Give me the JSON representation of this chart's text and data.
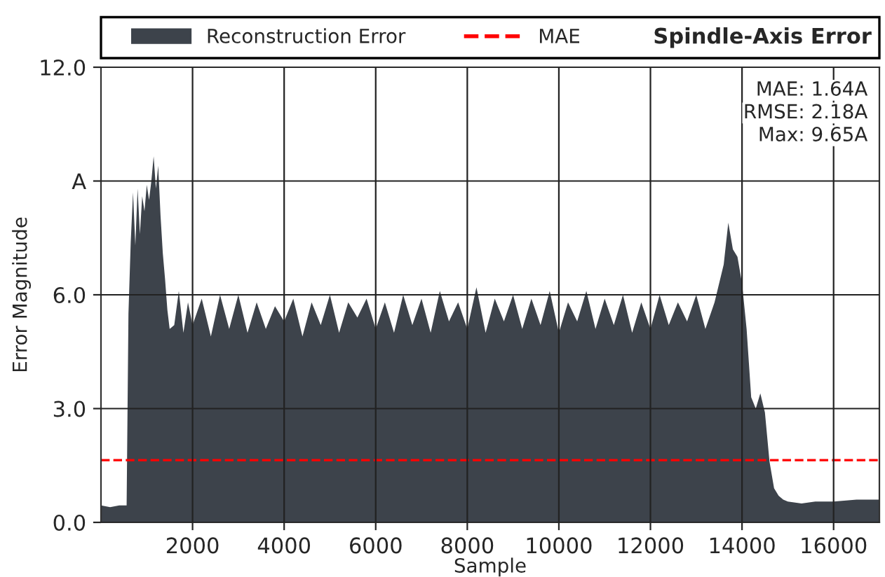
{
  "chart_data": {
    "type": "area",
    "title": "Spindle-Axis Error",
    "xlabel": "Sample",
    "ylabel": "Error Magnitude",
    "x": [
      0,
      200,
      400,
      560,
      600,
      650,
      700,
      750,
      800,
      850,
      900,
      950,
      1000,
      1050,
      1100,
      1150,
      1200,
      1250,
      1300,
      1350,
      1400,
      1450,
      1500,
      1600,
      1700,
      1800,
      1900,
      2000,
      2200,
      2400,
      2600,
      2800,
      3000,
      3200,
      3400,
      3600,
      3800,
      4000,
      4200,
      4400,
      4600,
      4800,
      5000,
      5200,
      5400,
      5600,
      5800,
      6000,
      6200,
      6400,
      6600,
      6800,
      7000,
      7200,
      7400,
      7600,
      7800,
      8000,
      8200,
      8400,
      8600,
      8800,
      9000,
      9200,
      9400,
      9600,
      9800,
      10000,
      10200,
      10400,
      10600,
      10800,
      11000,
      11200,
      11400,
      11600,
      11800,
      12000,
      12200,
      12400,
      12600,
      12800,
      13000,
      13200,
      13400,
      13600,
      13700,
      13800,
      13900,
      14000,
      14100,
      14200,
      14300,
      14400,
      14500,
      14600,
      14700,
      14800,
      14900,
      15000,
      15300,
      15600,
      16000,
      16500,
      17000
    ],
    "series": [
      {
        "name": "Reconstruction Error",
        "color": "#3d434b",
        "values": [
          0.45,
          0.4,
          0.45,
          0.45,
          5.5,
          7.4,
          8.7,
          7.3,
          8.8,
          7.6,
          8.6,
          8.2,
          8.9,
          8.5,
          9.0,
          9.65,
          8.8,
          9.4,
          8.1,
          7.1,
          6.4,
          5.6,
          5.1,
          5.2,
          6.1,
          5.0,
          5.8,
          5.2,
          5.9,
          4.9,
          6.0,
          5.1,
          6.0,
          5.0,
          5.8,
          5.1,
          5.7,
          5.3,
          5.9,
          4.9,
          5.8,
          5.2,
          6.0,
          5.0,
          5.8,
          5.4,
          5.9,
          5.1,
          5.8,
          5.0,
          6.0,
          5.2,
          5.9,
          5.0,
          6.1,
          5.3,
          5.8,
          5.1,
          6.2,
          5.0,
          5.9,
          5.3,
          6.0,
          5.1,
          5.9,
          5.2,
          6.1,
          5.0,
          5.8,
          5.3,
          6.1,
          5.1,
          5.9,
          5.2,
          6.0,
          5.0,
          5.8,
          5.1,
          6.0,
          5.2,
          5.8,
          5.3,
          6.0,
          5.1,
          5.8,
          6.8,
          7.9,
          7.2,
          7.0,
          6.3,
          5.1,
          3.3,
          3.0,
          3.4,
          2.9,
          1.6,
          0.9,
          0.7,
          0.6,
          0.55,
          0.5,
          0.55,
          0.55,
          0.6,
          0.6
        ]
      }
    ],
    "xlim": [
      0,
      17000
    ],
    "xticks": [
      2000,
      4000,
      6000,
      8000,
      10000,
      12000,
      14000,
      16000
    ],
    "ylim": [
      0,
      12
    ],
    "yticks": [
      {
        "value": 0,
        "label": "0.0"
      },
      {
        "value": 3,
        "label": "3.0"
      },
      {
        "value": 6,
        "label": "6.0"
      },
      {
        "value": 9,
        "label": "A"
      },
      {
        "value": 12,
        "label": "12.0"
      }
    ],
    "ref_lines": [
      {
        "axis": "y",
        "value": 1.64,
        "label": "MAE",
        "color": "#ff0000",
        "line_style": "dashed"
      }
    ],
    "annotations": [
      "MAE: 1.64A",
      "RMSE: 2.18A",
      "Max: 9.65A"
    ],
    "grid": true,
    "legend": "top"
  }
}
